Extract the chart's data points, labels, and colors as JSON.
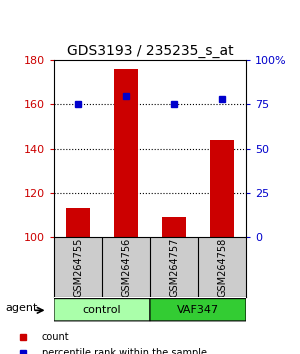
{
  "title": "GDS3193 / 235235_s_at",
  "samples": [
    "GSM264755",
    "GSM264756",
    "GSM264757",
    "GSM264758"
  ],
  "counts": [
    113,
    176,
    109,
    144
  ],
  "percentile_ranks": [
    75,
    80,
    75,
    78
  ],
  "ylim_left": [
    100,
    180
  ],
  "ylim_right": [
    0,
    100
  ],
  "left_ticks": [
    100,
    120,
    140,
    160,
    180
  ],
  "right_ticks": [
    0,
    25,
    50,
    75,
    100
  ],
  "right_tick_labels": [
    "0",
    "25",
    "50",
    "75",
    "100%"
  ],
  "bar_color": "#cc0000",
  "dot_color": "#0000cc",
  "grid_color": "#000000",
  "groups": [
    {
      "label": "control",
      "samples": [
        0,
        1
      ],
      "color": "#aaffaa"
    },
    {
      "label": "VAF347",
      "samples": [
        2,
        3
      ],
      "color": "#33cc33"
    }
  ],
  "group_label": "agent",
  "legend_bar_label": "count",
  "legend_dot_label": "percentile rank within the sample",
  "sample_box_color": "#cccccc",
  "background_color": "#ffffff"
}
